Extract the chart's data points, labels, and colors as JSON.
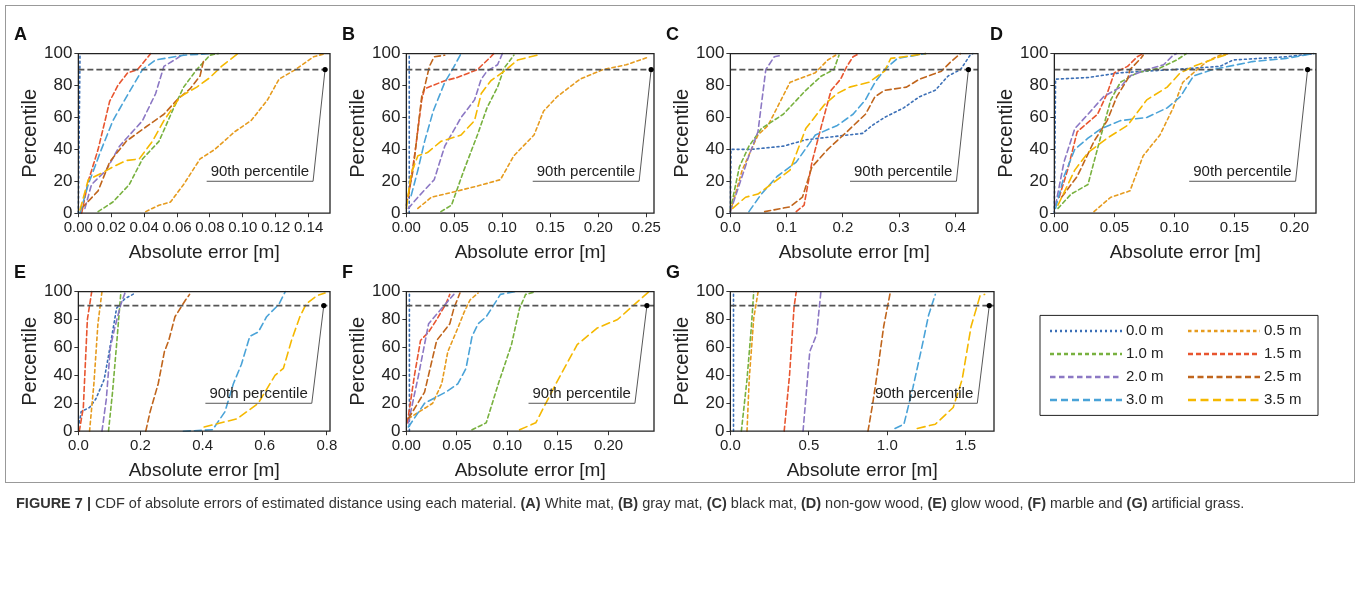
{
  "chart_data": [
    {
      "type": "line",
      "title": "A",
      "xlabel": "Absolute error [m]",
      "ylabel": "Percentile",
      "line_style": "dashed",
      "xlim": [
        0,
        0.153
      ],
      "xticks": [
        {
          "value": 0,
          "label": "0.00"
        },
        0.02,
        0.04,
        0.06,
        0.08,
        {
          "value": 0.1,
          "label": "0.10"
        },
        0.12,
        0.14
      ],
      "ylim": [
        0,
        100
      ],
      "yticks": [
        0,
        20,
        40,
        60,
        80,
        100
      ],
      "ref_lines": [
        {
          "axis": "y",
          "value": 90,
          "color": "#555555",
          "line_style": "dashed"
        }
      ],
      "annotations": [
        {
          "text": "90th percentile",
          "x": 0.15,
          "y": 90
        }
      ],
      "series": [
        {
          "color": "#3b6fb6",
          "x": [
            0,
            0.001
          ],
          "values": [
            0,
            100
          ]
        },
        {
          "color": "#e69b1e",
          "x": [
            0.041,
            0.049,
            0.056,
            0.064,
            0.074,
            0.083,
            0.095,
            0.105,
            0.115,
            0.122,
            0.132,
            0.143,
            0.15
          ],
          "values": [
            1,
            5,
            7,
            18,
            34,
            40,
            51,
            58,
            71,
            84,
            90,
            98,
            100
          ]
        },
        {
          "color": "#78b13f",
          "x": [
            0.012,
            0.021,
            0.031,
            0.039,
            0.049,
            0.058,
            0.064,
            0.072,
            0.08,
            0.085
          ],
          "values": [
            1,
            7,
            18,
            34,
            45,
            66,
            79,
            90,
            99,
            100
          ]
        },
        {
          "color": "#e8552f",
          "x": [
            0.002,
            0.006,
            0.012,
            0.016,
            0.019,
            0.024,
            0.03,
            0.036,
            0.044
          ],
          "values": [
            0,
            20,
            40,
            57,
            70,
            80,
            88,
            90,
            100
          ]
        },
        {
          "color": "#8c78c4",
          "x": [
            0.004,
            0.008,
            0.017,
            0.025,
            0.039,
            0.047,
            0.052,
            0.06,
            0.064
          ],
          "values": [
            3,
            18,
            27,
            42,
            58,
            75,
            92,
            97,
            100
          ]
        },
        {
          "color": "#c0651c",
          "x": [
            0.002,
            0.012,
            0.019,
            0.029,
            0.041,
            0.052,
            0.06,
            0.068,
            0.074,
            0.076
          ],
          "values": [
            3,
            14,
            32,
            45,
            54,
            62,
            71,
            78,
            86,
            95
          ]
        },
        {
          "color": "#4aa3d8",
          "x": [
            0.001,
            0.006,
            0.014,
            0.021,
            0.031,
            0.039,
            0.047,
            0.064,
            0.08
          ],
          "values": [
            0,
            18,
            40,
            58,
            76,
            90,
            96,
            99,
            100
          ]
        },
        {
          "color": "#f5b800",
          "x": [
            0.001,
            0.006,
            0.014,
            0.021,
            0.029,
            0.037,
            0.045,
            0.052,
            0.062,
            0.072,
            0.08,
            0.087,
            0.097
          ],
          "values": [
            2,
            21,
            25,
            29,
            33,
            34,
            45,
            58,
            73,
            79,
            85,
            92,
            100
          ]
        }
      ]
    },
    {
      "type": "line",
      "title": "B",
      "xlabel": "Absolute error [m]",
      "ylabel": "Percentile",
      "line_style": "dashed",
      "xlim": [
        0,
        0.258
      ],
      "xticks": [
        {
          "value": 0,
          "label": "0.00"
        },
        0.05,
        {
          "value": 0.1,
          "label": "0.10"
        },
        0.15,
        {
          "value": 0.2,
          "label": "0.20"
        },
        0.25
      ],
      "ylim": [
        0,
        100
      ],
      "yticks": [
        0,
        20,
        40,
        60,
        80,
        100
      ],
      "ref_lines": [
        {
          "axis": "y",
          "value": 90,
          "color": "#555555",
          "line_style": "dashed"
        }
      ],
      "annotations": [
        {
          "text": "90th percentile",
          "x": 0.255,
          "y": 90
        }
      ],
      "series": [
        {
          "color": "#3b6fb6",
          "x": [
            0.003,
            0.003
          ],
          "values": [
            0,
            100
          ]
        },
        {
          "color": "#e69b1e",
          "x": [
            0.012,
            0.026,
            0.047,
            0.074,
            0.098,
            0.112,
            0.133,
            0.143,
            0.157,
            0.181,
            0.205,
            0.229,
            0.253
          ],
          "values": [
            3,
            10,
            13,
            17,
            21,
            36,
            49,
            64,
            73,
            84,
            90,
            93,
            98
          ]
        },
        {
          "color": "#78b13f",
          "x": [
            0.036,
            0.047,
            0.06,
            0.074,
            0.084,
            0.095,
            0.102,
            0.112
          ],
          "values": [
            1,
            5,
            27,
            49,
            66,
            79,
            91,
            99
          ]
        },
        {
          "color": "#e8552f",
          "x": [
            0.002,
            0.009,
            0.016,
            0.019,
            0.04,
            0.053,
            0.074,
            0.088,
            0.091
          ],
          "values": [
            10,
            38,
            71,
            78,
            83,
            85,
            90,
            98,
            100
          ]
        },
        {
          "color": "#8c78c4",
          "x": [
            0.002,
            0.012,
            0.029,
            0.04,
            0.057,
            0.071,
            0.078,
            0.084,
            0.095,
            0.1
          ],
          "values": [
            3,
            10,
            21,
            42,
            60,
            71,
            84,
            89,
            93,
            100
          ]
        },
        {
          "color": "#c0651c",
          "x": [
            0,
            0.007,
            0.012,
            0.016,
            0.019,
            0.024,
            0.029,
            0.04
          ],
          "values": [
            5,
            27,
            53,
            73,
            79,
            92,
            98,
            99
          ]
        },
        {
          "color": "#4aa3d8",
          "x": [
            0.005,
            0.012,
            0.019,
            0.028,
            0.04,
            0.047,
            0.057
          ],
          "values": [
            11,
            27,
            45,
            64,
            82,
            89,
            100
          ]
        },
        {
          "color": "#f5b800",
          "x": [
            0,
            0.005,
            0.012,
            0.022,
            0.036,
            0.057,
            0.071,
            0.078,
            0.088,
            0.102,
            0.116,
            0.136
          ],
          "values": [
            3,
            25,
            36,
            38,
            45,
            49,
            58,
            75,
            83,
            89,
            96,
            99
          ]
        }
      ]
    },
    {
      "type": "line",
      "title": "C",
      "xlabel": "Absolute error [m]",
      "ylabel": "Percentile",
      "line_style": "dashed",
      "xlim": [
        0,
        0.44
      ],
      "xticks": [
        {
          "value": 0,
          "label": "0.0"
        },
        0.1,
        0.2,
        0.3,
        0.4
      ],
      "ylim": [
        0,
        100
      ],
      "yticks": [
        0,
        20,
        40,
        60,
        80,
        100
      ],
      "ref_lines": [
        {
          "axis": "y",
          "value": 90,
          "color": "#555555",
          "line_style": "dashed"
        }
      ],
      "annotations": [
        {
          "text": "90th percentile",
          "x": 0.423,
          "y": 90
        }
      ],
      "series": [
        {
          "color": "#3b6fb6",
          "x": [
            0,
            0.001,
            0.038,
            0.094,
            0.134,
            0.184,
            0.235,
            0.252,
            0.274,
            0.308,
            0.336,
            0.364,
            0.387,
            0.409,
            0.426,
            0.431
          ],
          "values": [
            0,
            40,
            40,
            42,
            46,
            48,
            50,
            55,
            60,
            66,
            73,
            77,
            86,
            90,
            99,
            100
          ]
        },
        {
          "color": "#e69b1e",
          "x": [
            0,
            0.021,
            0.049,
            0.067,
            0.106,
            0.151,
            0.173,
            0.187
          ],
          "values": [
            1,
            27,
            49,
            55,
            82,
            88,
            96,
            99
          ]
        },
        {
          "color": "#78b13f",
          "x": [
            0,
            0.016,
            0.033,
            0.055,
            0.094,
            0.134,
            0.162,
            0.184,
            0.193
          ],
          "values": [
            2,
            29,
            42,
            53,
            62,
            77,
            86,
            90,
            99
          ]
        },
        {
          "color": "#e8552f",
          "x": [
            0.117,
            0.131,
            0.145,
            0.162,
            0.179,
            0.196,
            0.207,
            0.218,
            0.229
          ],
          "values": [
            1,
            5,
            32,
            55,
            77,
            84,
            92,
            98,
            100
          ]
        },
        {
          "color": "#8c78c4",
          "x": [
            0,
            0.016,
            0.033,
            0.049,
            0.063,
            0.078,
            0.092
          ],
          "values": [
            1,
            18,
            36,
            51,
            90,
            98,
            99
          ]
        },
        {
          "color": "#c0651c",
          "x": [
            0.061,
            0.106,
            0.128,
            0.145,
            0.173,
            0.207,
            0.24,
            0.257,
            0.274,
            0.313,
            0.336,
            0.375,
            0.392,
            0.409
          ],
          "values": [
            1,
            4,
            10,
            29,
            40,
            51,
            62,
            73,
            77,
            79,
            84,
            89,
            95,
            100
          ]
        },
        {
          "color": "#4aa3d8",
          "x": [
            0.033,
            0.055,
            0.083,
            0.117,
            0.151,
            0.19,
            0.218,
            0.24,
            0.257,
            0.274,
            0.297,
            0.347
          ],
          "values": [
            1,
            12,
            23,
            32,
            49,
            55,
            62,
            71,
            82,
            90,
            97,
            100
          ]
        },
        {
          "color": "#f5b800",
          "x": [
            0.004,
            0.027,
            0.049,
            0.072,
            0.106,
            0.134,
            0.167,
            0.19,
            0.212,
            0.246,
            0.274,
            0.285,
            0.308,
            0.347
          ],
          "values": [
            3,
            10,
            12,
            18,
            27,
            53,
            68,
            75,
            79,
            82,
            89,
            97,
            98,
            100
          ]
        }
      ]
    },
    {
      "type": "line",
      "title": "D",
      "xlabel": "Absolute error [m]",
      "ylabel": "Percentile",
      "line_style": "dashed",
      "xlim": [
        0,
        0.218
      ],
      "xticks": [
        {
          "value": 0,
          "label": "0.00"
        },
        0.05,
        {
          "value": 0.1,
          "label": "0.10"
        },
        0.15,
        {
          "value": 0.2,
          "label": "0.20"
        }
      ],
      "ylim": [
        0,
        100
      ],
      "yticks": [
        0,
        20,
        40,
        60,
        80,
        100
      ],
      "ref_lines": [
        {
          "axis": "y",
          "value": 90,
          "color": "#555555",
          "line_style": "dashed"
        }
      ],
      "annotations": [
        {
          "text": "90th percentile",
          "x": 0.211,
          "y": 90
        }
      ],
      "series": [
        {
          "color": "#3b6fb6",
          "x": [
            0,
            0.001,
            0.028,
            0.055,
            0.099,
            0.138,
            0.149,
            0.193,
            0.216
          ],
          "values": [
            0,
            84,
            85,
            88,
            90,
            92,
            96,
            98,
            100
          ]
        },
        {
          "color": "#e69b1e",
          "x": [
            0.033,
            0.047,
            0.063,
            0.074,
            0.088,
            0.099,
            0.107,
            0.116,
            0.127,
            0.138,
            0.146
          ],
          "values": [
            1,
            10,
            14,
            36,
            49,
            66,
            82,
            88,
            95,
            99,
            100
          ]
        },
        {
          "color": "#78b13f",
          "x": [
            0.003,
            0.014,
            0.028,
            0.039,
            0.047,
            0.055,
            0.069,
            0.088,
            0.102,
            0.11
          ],
          "values": [
            3,
            12,
            18,
            49,
            71,
            82,
            88,
            91,
            96,
            100
          ]
        },
        {
          "color": "#e8552f",
          "x": [
            0.004,
            0.011,
            0.019,
            0.036,
            0.044,
            0.05,
            0.061,
            0.069,
            0.074
          ],
          "values": [
            10,
            27,
            51,
            62,
            75,
            88,
            92,
            98,
            100
          ]
        },
        {
          "color": "#8c78c4",
          "x": [
            0.001,
            0.008,
            0.017,
            0.028,
            0.041,
            0.055,
            0.063,
            0.077,
            0.091,
            0.099,
            0.102
          ],
          "values": [
            5,
            32,
            53,
            62,
            73,
            79,
            86,
            90,
            93,
            99,
            100
          ]
        },
        {
          "color": "#c0651c",
          "x": [
            0.006,
            0.019,
            0.033,
            0.044,
            0.052,
            0.061,
            0.063,
            0.072,
            0.074
          ],
          "values": [
            10,
            23,
            45,
            58,
            73,
            84,
            90,
            97,
            99
          ]
        },
        {
          "color": "#4aa3d8",
          "x": [
            0.001,
            0.008,
            0.017,
            0.028,
            0.039,
            0.055,
            0.077,
            0.094,
            0.105,
            0.11,
            0.116,
            0.132,
            0.165,
            0.193,
            0.216
          ],
          "values": [
            3,
            23,
            40,
            47,
            53,
            58,
            60,
            66,
            73,
            79,
            86,
            90,
            95,
            97,
            100
          ]
        },
        {
          "color": "#f5b800",
          "x": [
            0.003,
            0.017,
            0.028,
            0.044,
            0.061,
            0.077,
            0.094,
            0.105,
            0.116,
            0.138,
            0.146
          ],
          "values": [
            5,
            27,
            38,
            47,
            55,
            71,
            79,
            88,
            92,
            98,
            100
          ]
        }
      ]
    },
    {
      "type": "line",
      "title": "E",
      "xlabel": "Absolute error [m]",
      "ylabel": "Percentile",
      "line_style": "dashed",
      "xlim": [
        0,
        0.81
      ],
      "xticks": [
        {
          "value": 0,
          "label": "0.0"
        },
        0.2,
        0.4,
        0.6,
        0.8
      ],
      "ylim": [
        0,
        100
      ],
      "yticks": [
        0,
        20,
        40,
        60,
        80,
        100
      ],
      "ref_lines": [
        {
          "axis": "y",
          "value": 90,
          "color": "#555555",
          "line_style": "dashed"
        }
      ],
      "annotations": [
        {
          "text": "90th percentile",
          "x": 0.79,
          "y": 90
        }
      ],
      "series": [
        {
          "color": "#3b6fb6",
          "x": [
            0.003,
            0.009,
            0.036,
            0.056,
            0.083,
            0.097,
            0.11,
            0.123,
            0.15,
            0.184
          ],
          "values": [
            6,
            14,
            17,
            23,
            37,
            54,
            71,
            88,
            95,
            99
          ]
        },
        {
          "color": "#e69b1e",
          "x": [
            0.036,
            0.05,
            0.063,
            0.076
          ],
          "values": [
            0,
            34,
            77,
            100
          ]
        },
        {
          "color": "#78b13f",
          "x": [
            0.097,
            0.11,
            0.123,
            0.137
          ],
          "values": [
            0,
            28,
            62,
            100
          ]
        },
        {
          "color": "#e8552f",
          "x": [
            0.003,
            0.016,
            0.029,
            0.043
          ],
          "values": [
            0,
            17,
            80,
            100
          ]
        },
        {
          "color": "#8c78c4",
          "x": [
            0.076,
            0.09,
            0.103,
            0.117,
            0.137,
            0.15
          ],
          "values": [
            0,
            23,
            60,
            74,
            91,
            99
          ]
        },
        {
          "color": "#c0651c",
          "x": [
            0.217,
            0.231,
            0.257,
            0.277,
            0.291,
            0.311,
            0.345,
            0.358
          ],
          "values": [
            0,
            14,
            34,
            57,
            65,
            82,
            94,
            98
          ]
        },
        {
          "color": "#4aa3d8",
          "x": [
            0.338,
            0.432,
            0.472,
            0.499,
            0.525,
            0.552,
            0.579,
            0.606,
            0.646,
            0.666
          ],
          "values": [
            0,
            1,
            14,
            34,
            48,
            68,
            71,
            82,
            91,
            100
          ]
        },
        {
          "color": "#f5b800",
          "x": [
            0.405,
            0.512,
            0.579,
            0.633,
            0.66,
            0.686,
            0.713,
            0.733,
            0.767,
            0.794
          ],
          "values": [
            3,
            9,
            20,
            40,
            45,
            65,
            82,
            91,
            97,
            99
          ]
        }
      ]
    },
    {
      "type": "line",
      "title": "F",
      "xlabel": "Absolute error [m]",
      "ylabel": "Percentile",
      "line_style": "dashed",
      "xlim": [
        0,
        0.245
      ],
      "xticks": [
        {
          "value": 0,
          "label": "0.00"
        },
        0.05,
        {
          "value": 0.1,
          "label": "0.10"
        },
        0.15,
        {
          "value": 0.2,
          "label": "0.20"
        }
      ],
      "ylim": [
        0,
        100
      ],
      "yticks": [
        0,
        20,
        40,
        60,
        80,
        100
      ],
      "ref_lines": [
        {
          "axis": "y",
          "value": 90,
          "color": "#555555",
          "line_style": "dashed"
        }
      ],
      "annotations": [
        {
          "text": "90th percentile",
          "x": 0.238,
          "y": 90
        }
      ],
      "series": [
        {
          "color": "#3b6fb6",
          "x": [
            0.003,
            0.003
          ],
          "values": [
            0,
            100
          ]
        },
        {
          "color": "#e69b1e",
          "x": [
            0.002,
            0.026,
            0.035,
            0.041,
            0.051,
            0.057,
            0.063,
            0.071
          ],
          "values": [
            9,
            20,
            34,
            57,
            74,
            85,
            94,
            99
          ]
        },
        {
          "color": "#78b13f",
          "x": [
            0.065,
            0.079,
            0.091,
            0.104,
            0.112,
            0.118,
            0.128
          ],
          "values": [
            1,
            6,
            34,
            62,
            88,
            98,
            100
          ]
        },
        {
          "color": "#e8552f",
          "x": [
            0.001,
            0.008,
            0.014,
            0.022,
            0.03,
            0.039,
            0.043
          ],
          "values": [
            6,
            40,
            65,
            71,
            80,
            91,
            98
          ]
        },
        {
          "color": "#8c78c4",
          "x": [
            0.002,
            0.012,
            0.022,
            0.035,
            0.047
          ],
          "values": [
            6,
            40,
            77,
            88,
            98
          ]
        },
        {
          "color": "#c0651c",
          "x": [
            0.002,
            0.018,
            0.03,
            0.043,
            0.047,
            0.053
          ],
          "values": [
            9,
            28,
            65,
            77,
            88,
            99
          ]
        },
        {
          "color": "#4aa3d8",
          "x": [
            0.002,
            0.018,
            0.039,
            0.051,
            0.059,
            0.065,
            0.071,
            0.079,
            0.087,
            0.093,
            0.108
          ],
          "values": [
            3,
            20,
            28,
            34,
            45,
            68,
            77,
            82,
            91,
            98,
            100
          ]
        },
        {
          "color": "#f5b800",
          "x": [
            0.112,
            0.128,
            0.148,
            0.169,
            0.189,
            0.209,
            0.226,
            0.24
          ],
          "values": [
            1,
            6,
            34,
            62,
            74,
            80,
            91,
            100
          ]
        }
      ]
    },
    {
      "type": "line",
      "title": "G",
      "xlabel": "Absolute error [m]",
      "ylabel": "Percentile",
      "line_style": "dashed",
      "legend": "right",
      "xlim": [
        0,
        1.68
      ],
      "xticks": [
        {
          "value": 0,
          "label": "0.0"
        },
        0.5,
        {
          "value": 1,
          "label": "1.0"
        },
        1.5
      ],
      "ylim": [
        0,
        100
      ],
      "yticks": [
        0,
        20,
        40,
        60,
        80,
        100
      ],
      "ref_lines": [
        {
          "axis": "y",
          "value": 90,
          "color": "#555555",
          "line_style": "dashed"
        }
      ],
      "annotations": [
        {
          "text": "90th percentile",
          "x": 1.65,
          "y": 90
        },
        "FIGURE 7 | CDF of absolute errors of estimated distance using each material. (A) White mat, (B) gray mat, (C) black mat, (D) non-gow wood, (E) glow wood, (F) marble and (G) artificial grass."
      ],
      "series": [
        {
          "name": "0.0 m",
          "color": "#3b6fb6",
          "x": [
            0.02,
            0.02
          ],
          "values": [
            0,
            100
          ]
        },
        {
          "name": "0.5 m",
          "color": "#e69b1e",
          "x": [
            0.106,
            0.12,
            0.149,
            0.177
          ],
          "values": [
            0,
            37,
            81,
            100
          ]
        },
        {
          "name": "1.0 m",
          "color": "#78b13f",
          "x": [
            0.07,
            0.106,
            0.134,
            0.149
          ],
          "values": [
            0,
            37,
            75,
            100
          ]
        },
        {
          "name": "1.5 m",
          "color": "#e8552f",
          "x": [
            0.343,
            0.377,
            0.406,
            0.42
          ],
          "values": [
            0,
            40,
            89,
            100
          ]
        },
        {
          "name": "2.0 m",
          "color": "#8c78c4",
          "x": [
            0.463,
            0.491,
            0.506,
            0.549,
            0.577
          ],
          "values": [
            0,
            37,
            57,
            69,
            100
          ]
        },
        {
          "name": "2.5 m",
          "color": "#c0651c",
          "x": [
            0.877,
            0.906,
            0.934,
            0.977,
            1.02
          ],
          "values": [
            0,
            19,
            40,
            75,
            100
          ]
        },
        {
          "name": "3.0 m",
          "color": "#4aa3d8",
          "x": [
            1.049,
            1.106,
            1.163,
            1.22,
            1.263,
            1.306
          ],
          "values": [
            2,
            5,
            31,
            60,
            83,
            98
          ]
        },
        {
          "name": "3.5 m",
          "color": "#f5b800",
          "x": [
            1.191,
            1.306,
            1.42,
            1.477,
            1.534,
            1.591,
            1.62
          ],
          "values": [
            2,
            5,
            17,
            37,
            75,
            97,
            98
          ]
        }
      ]
    }
  ]
}
